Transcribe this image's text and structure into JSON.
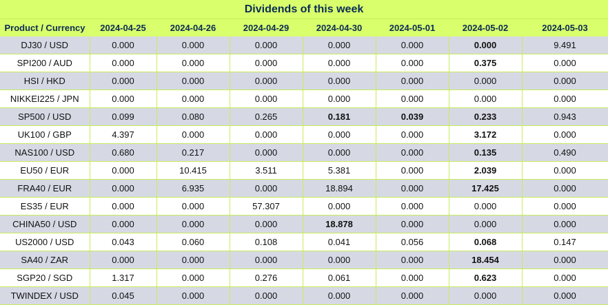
{
  "title": "Dividends of this week",
  "table": {
    "columns": [
      "Product / Currency",
      "2024-04-25",
      "2024-04-26",
      "2024-04-29",
      "2024-04-30",
      "2024-05-01",
      "2024-05-02",
      "2024-05-03"
    ],
    "rows": [
      {
        "label": "DJ30 / USD",
        "values": [
          "0.000",
          "0.000",
          "0.000",
          "0.000",
          "0.000",
          "0.000",
          "9.491"
        ],
        "bold": [
          5
        ]
      },
      {
        "label": "SPI200 / AUD",
        "values": [
          "0.000",
          "0.000",
          "0.000",
          "0.000",
          "0.000",
          "0.375",
          "0.000"
        ],
        "bold": [
          5
        ]
      },
      {
        "label": "HSI / HKD",
        "values": [
          "0.000",
          "0.000",
          "0.000",
          "0.000",
          "0.000",
          "0.000",
          "0.000"
        ],
        "bold": []
      },
      {
        "label": "NIKKEI225 / JPN",
        "values": [
          "0.000",
          "0.000",
          "0.000",
          "0.000",
          "0.000",
          "0.000",
          "0.000"
        ],
        "bold": []
      },
      {
        "label": "SP500 / USD",
        "values": [
          "0.099",
          "0.080",
          "0.265",
          "0.181",
          "0.039",
          "0.233",
          "0.943"
        ],
        "bold": [
          3,
          4,
          5
        ]
      },
      {
        "label": "UK100 / GBP",
        "values": [
          "4.397",
          "0.000",
          "0.000",
          "0.000",
          "0.000",
          "3.172",
          "0.000"
        ],
        "bold": [
          5
        ]
      },
      {
        "label": "NAS100 / USD",
        "values": [
          "0.680",
          "0.217",
          "0.000",
          "0.000",
          "0.000",
          "0.135",
          "0.490"
        ],
        "bold": [
          5
        ]
      },
      {
        "label": "EU50 / EUR",
        "values": [
          "0.000",
          "10.415",
          "3.511",
          "5.381",
          "0.000",
          "2.039",
          "0.000"
        ],
        "bold": [
          5
        ]
      },
      {
        "label": "FRA40 / EUR",
        "values": [
          "0.000",
          "6.935",
          "0.000",
          "18.894",
          "0.000",
          "17.425",
          "0.000"
        ],
        "bold": [
          5
        ]
      },
      {
        "label": "ES35 / EUR",
        "values": [
          "0.000",
          "0.000",
          "57.307",
          "0.000",
          "0.000",
          "0.000",
          "0.000"
        ],
        "bold": []
      },
      {
        "label": "CHINA50 / USD",
        "values": [
          "0.000",
          "0.000",
          "0.000",
          "18.878",
          "0.000",
          "0.000",
          "0.000"
        ],
        "bold": [
          3
        ]
      },
      {
        "label": "US2000 / USD",
        "values": [
          "0.043",
          "0.060",
          "0.108",
          "0.041",
          "0.056",
          "0.068",
          "0.147"
        ],
        "bold": [
          5
        ]
      },
      {
        "label": "SA40 / ZAR",
        "values": [
          "0.000",
          "0.000",
          "0.000",
          "0.000",
          "0.000",
          "18.454",
          "0.000"
        ],
        "bold": [
          5
        ]
      },
      {
        "label": "SGP20 / SGD",
        "values": [
          "1.317",
          "0.000",
          "0.276",
          "0.061",
          "0.000",
          "0.623",
          "0.000"
        ],
        "bold": [
          5
        ]
      },
      {
        "label": "TWINDEX / USD",
        "values": [
          "0.045",
          "0.000",
          "0.000",
          "0.000",
          "0.000",
          "0.000",
          "0.000"
        ],
        "bold": []
      }
    ]
  },
  "colors": {
    "header_bg": "#d9ff6c",
    "header_text": "#0b2b55",
    "row_alt_bg": "#d6d9e4",
    "row_bg": "#ffffff",
    "grid_line": "#c8ec5a"
  }
}
